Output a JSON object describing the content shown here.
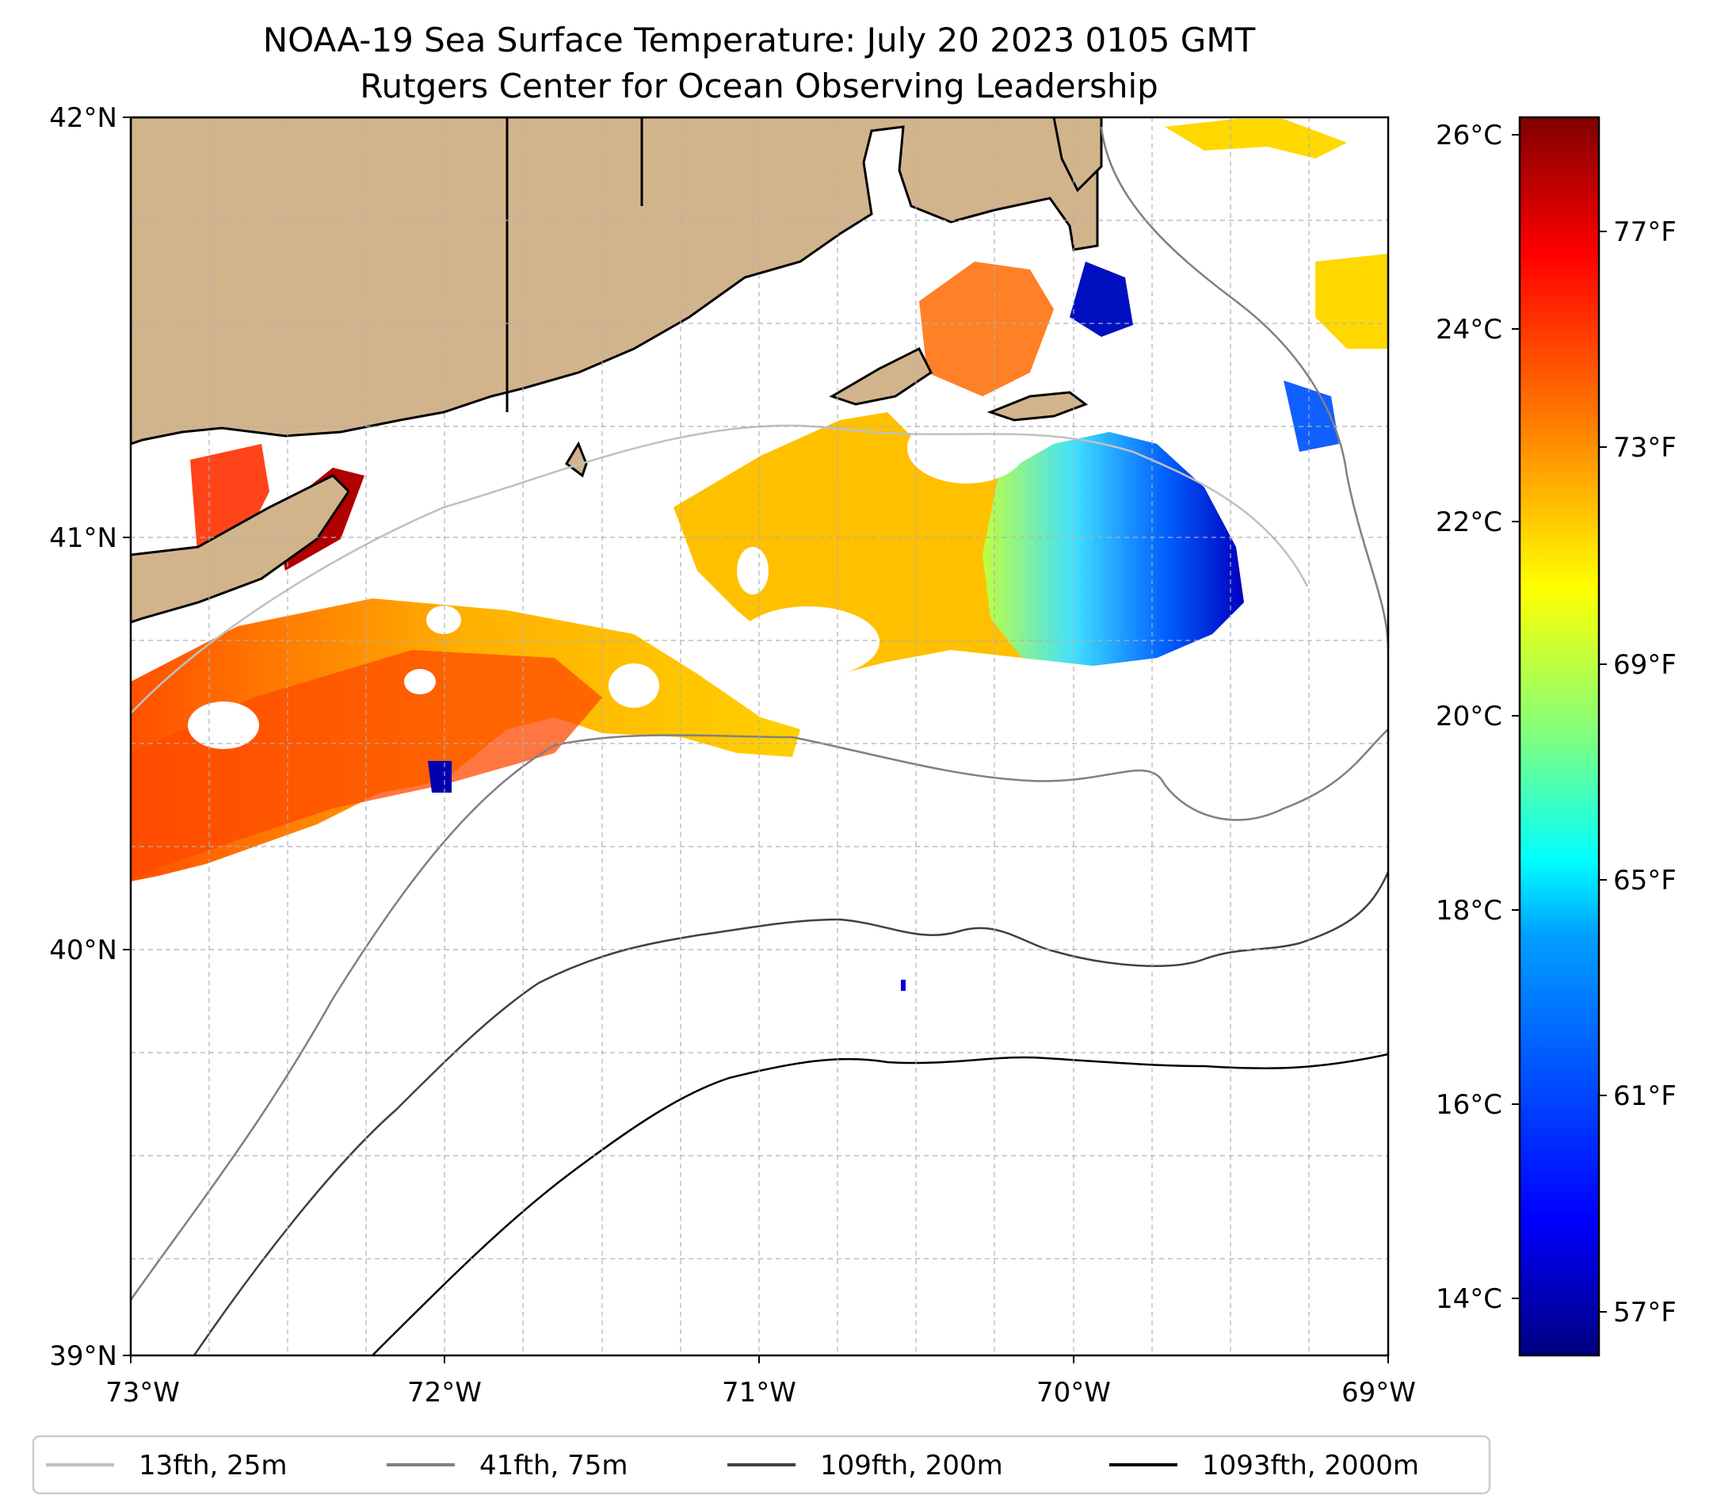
{
  "title": {
    "line1": "NOAA-19 Sea Surface Temperature: July 20 2023 0105 GMT",
    "line2": "Rutgers Center for Ocean Observing Leadership"
  },
  "map": {
    "lon_range": [
      -73,
      -69
    ],
    "lat_range": [
      39,
      42
    ],
    "x_tick_labels": [
      "73°W",
      "72°W",
      "71°W",
      "70°W",
      "69°W"
    ],
    "y_tick_labels": [
      "42°N",
      "41°N",
      "40°N",
      "39°N"
    ],
    "land_color": "#d2b48c",
    "regions_labelled": []
  },
  "colorbar": {
    "celsius_labels": [
      "26°C",
      "24°C",
      "22°C",
      "20°C",
      "18°C",
      "16°C",
      "14°C"
    ],
    "fahrenheit_labels": [
      "77°F",
      "73°F",
      "69°F",
      "65°F",
      "61°F",
      "57°F"
    ],
    "colormap": [
      "#00007f",
      "#0000ff",
      "#007fff",
      "#00ffff",
      "#7fff7f",
      "#ffff00",
      "#ff7f00",
      "#ff0000",
      "#7f0000"
    ]
  },
  "legend": {
    "items": [
      {
        "label": "13fth, 25m",
        "color": "#c0c0c0"
      },
      {
        "label": "41fth, 75m",
        "color": "#808080"
      },
      {
        "label": "109fth, 200m",
        "color": "#404040"
      },
      {
        "label": "1093fth, 2000m",
        "color": "#000000"
      }
    ]
  }
}
